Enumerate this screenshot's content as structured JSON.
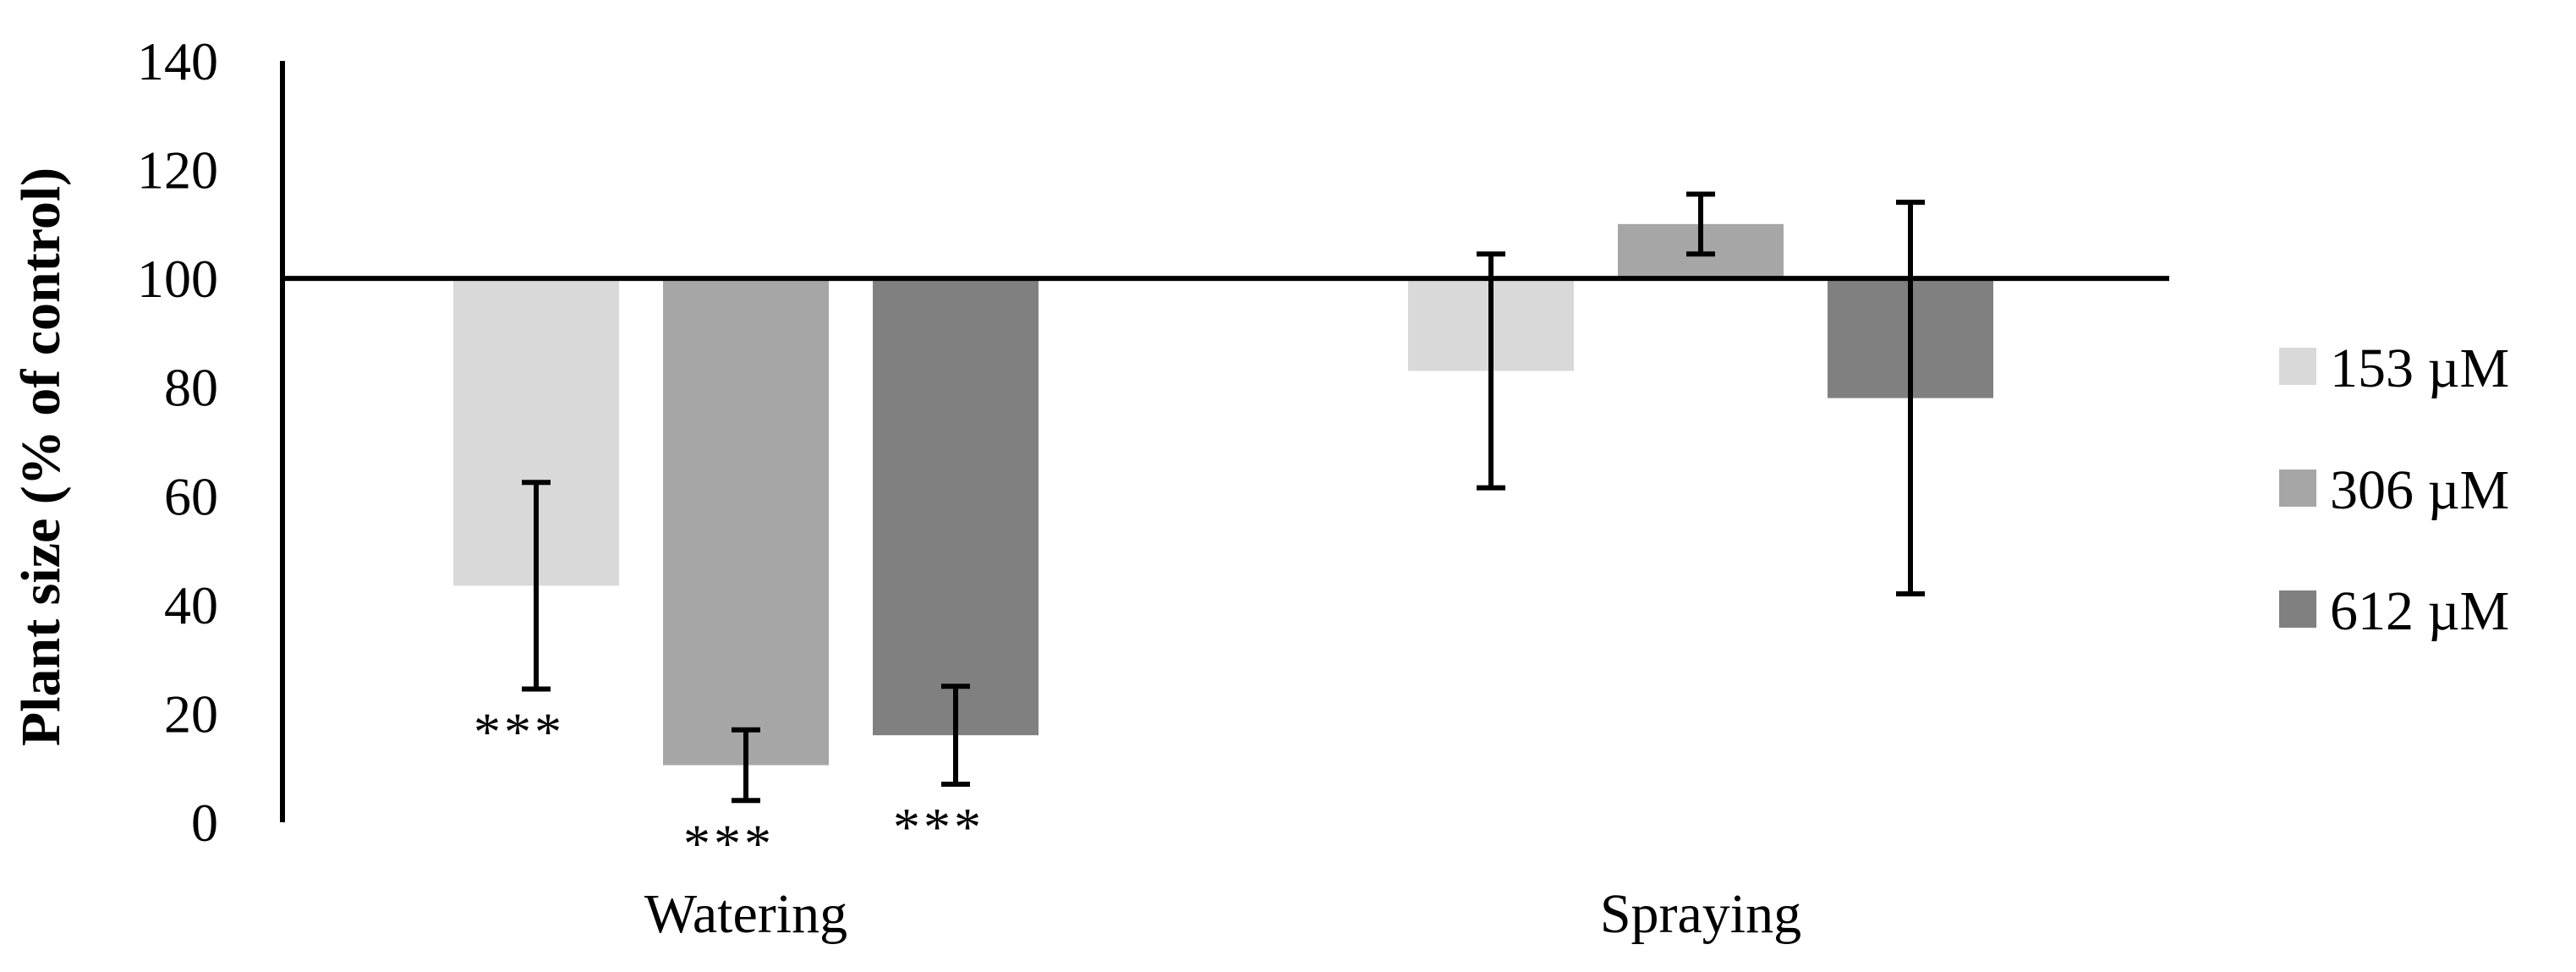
{
  "chart_data": {
    "type": "bar",
    "title": "",
    "xlabel": "",
    "ylabel": "Plant size (% of control)",
    "ylim": [
      0,
      140
    ],
    "yticks": [
      0,
      20,
      40,
      60,
      80,
      100,
      120,
      140
    ],
    "baseline": 100,
    "grid": false,
    "legend_position": "right",
    "categories": [
      "Watering",
      "Spraying"
    ],
    "series": [
      {
        "name": "153 µM",
        "color": "#d9d9d9",
        "values": [
          43.5,
          83
        ],
        "errors": [
          19,
          21.5
        ],
        "significance": [
          "***",
          ""
        ]
      },
      {
        "name": "306 µM",
        "color": "#a6a6a6",
        "values": [
          10.5,
          110
        ],
        "errors": [
          6.5,
          5.5
        ],
        "significance": [
          "***",
          ""
        ]
      },
      {
        "name": "612 µM",
        "color": "#808080",
        "values": [
          16,
          78
        ],
        "errors": [
          9,
          36
        ],
        "significance": [
          "***",
          ""
        ]
      }
    ]
  }
}
